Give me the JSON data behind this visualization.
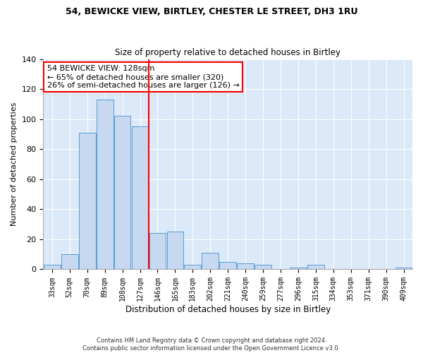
{
  "title1": "54, BEWICKE VIEW, BIRTLEY, CHESTER LE STREET, DH3 1RU",
  "title2": "Size of property relative to detached houses in Birtley",
  "xlabel": "Distribution of detached houses by size in Birtley",
  "ylabel": "Number of detached properties",
  "categories": [
    "33sqm",
    "52sqm",
    "70sqm",
    "89sqm",
    "108sqm",
    "127sqm",
    "146sqm",
    "165sqm",
    "183sqm",
    "202sqm",
    "221sqm",
    "240sqm",
    "259sqm",
    "277sqm",
    "296sqm",
    "315sqm",
    "334sqm",
    "353sqm",
    "371sqm",
    "390sqm",
    "409sqm"
  ],
  "values": [
    3,
    10,
    91,
    113,
    102,
    95,
    24,
    25,
    3,
    11,
    5,
    4,
    3,
    0,
    1,
    3,
    0,
    0,
    0,
    0,
    1
  ],
  "bar_color": "#c6d9f0",
  "bar_edge_color": "#5b9bd5",
  "vline_x": 5.5,
  "vline_color": "red",
  "annotation_text": "54 BEWICKE VIEW: 128sqm\n← 65% of detached houses are smaller (320)\n26% of semi-detached houses are larger (126) →",
  "annotation_box_color": "white",
  "annotation_box_edge_color": "red",
  "ylim": [
    0,
    140
  ],
  "yticks": [
    0,
    20,
    40,
    60,
    80,
    100,
    120,
    140
  ],
  "footnote": "Contains HM Land Registry data © Crown copyright and database right 2024.\nContains public sector information licensed under the Open Government Licence v3.0.",
  "background_color": "#dce9f8",
  "title1_fontsize": 9,
  "title2_fontsize": 8.5,
  "xlabel_fontsize": 8.5,
  "ylabel_fontsize": 8,
  "annotation_fontsize": 8,
  "tick_fontsize": 7
}
